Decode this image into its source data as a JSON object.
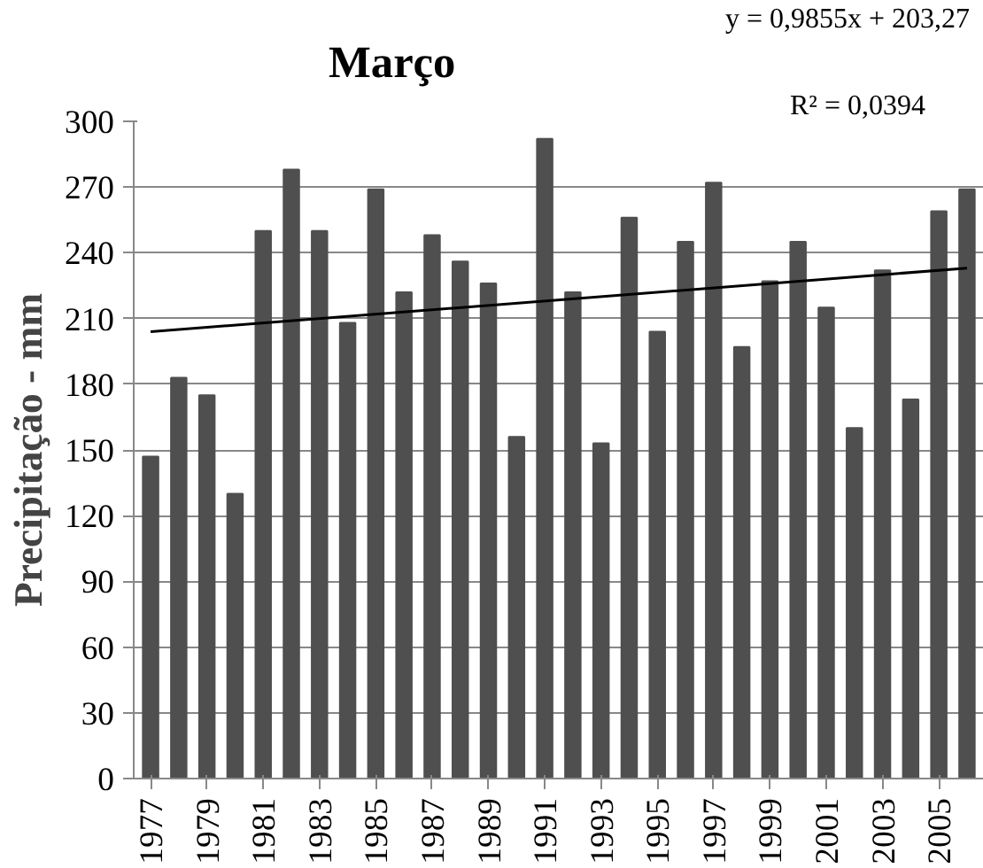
{
  "chart_data": {
    "type": "bar",
    "title": "Março",
    "ylabel": "Precipitação - mm",
    "annotations": [
      "y = 0,9855x + 203,27",
      "R² = 0,0394"
    ],
    "x": [
      1977,
      1978,
      1979,
      1980,
      1981,
      1982,
      1983,
      1984,
      1985,
      1986,
      1987,
      1988,
      1989,
      1990,
      1991,
      1992,
      1993,
      1994,
      1995,
      1996,
      1997,
      1998,
      1999,
      2000,
      2001,
      2002,
      2003,
      2004,
      2005,
      2006
    ],
    "series": [
      {
        "color": "#4f4f4f",
        "values": [
          147,
          183,
          175,
          130,
          250,
          278,
          250,
          208,
          269,
          222,
          248,
          236,
          226,
          156,
          292,
          222,
          153,
          256,
          204,
          245,
          272,
          197,
          227,
          245,
          215,
          160,
          232,
          173,
          259,
          269
        ]
      },
      {
        "type": "line",
        "color": "#000000",
        "x": [
          1977,
          2006
        ],
        "values": [
          204,
          233
        ]
      }
    ],
    "xlim": [
      1976.4,
      2006.6
    ],
    "xticks": [
      1977,
      1979,
      1981,
      1983,
      1985,
      1987,
      1989,
      1991,
      1993,
      1995,
      1997,
      1999,
      2001,
      2003,
      2005
    ],
    "ylim": [
      0,
      300
    ],
    "yticks": [
      0,
      30,
      60,
      90,
      120,
      150,
      180,
      210,
      240,
      270,
      300
    ],
    "grid": "y"
  }
}
